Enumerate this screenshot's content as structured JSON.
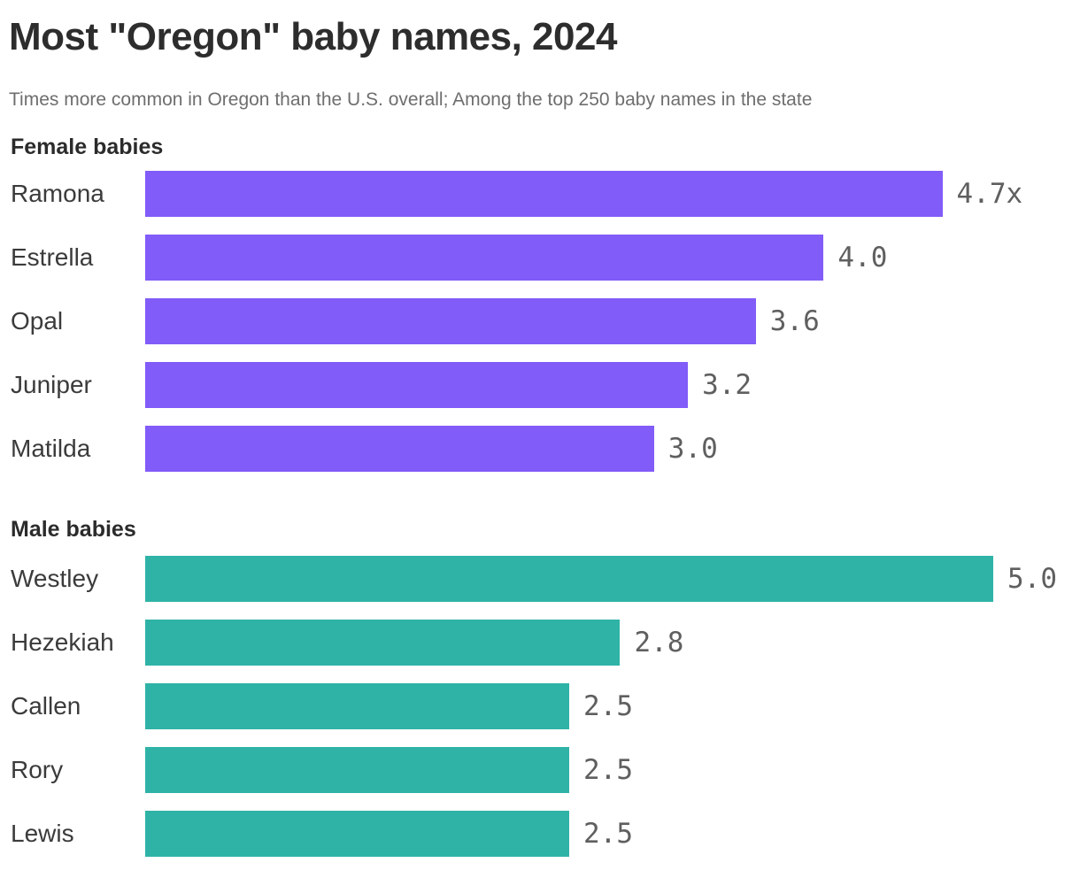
{
  "header": {
    "title": "Most \"Oregon\" baby names, 2024",
    "subtitle": "Times more common in Oregon than the U.S. overall; Among the top 250 baby names in the state"
  },
  "chart_data": {
    "type": "bar",
    "orientation": "horizontal",
    "xlim": [
      0,
      5.0
    ],
    "grid": false,
    "legend": false,
    "value_label_position": "end-of-bar",
    "sections": [
      {
        "label": "Female babies",
        "color": "#815CF8",
        "rows": [
          {
            "name": "Ramona",
            "value": 4.7,
            "value_label": "4.7x"
          },
          {
            "name": "Estrella",
            "value": 4.0,
            "value_label": "4.0"
          },
          {
            "name": "Opal",
            "value": 3.6,
            "value_label": "3.6"
          },
          {
            "name": "Juniper",
            "value": 3.2,
            "value_label": "3.2"
          },
          {
            "name": "Matilda",
            "value": 3.0,
            "value_label": "3.0"
          }
        ]
      },
      {
        "label": "Male babies",
        "color": "#2EB3A6",
        "rows": [
          {
            "name": "Westley",
            "value": 5.0,
            "value_label": "5.0"
          },
          {
            "name": "Hezekiah",
            "value": 2.8,
            "value_label": "2.8"
          },
          {
            "name": "Callen",
            "value": 2.5,
            "value_label": "2.5"
          },
          {
            "name": "Rory",
            "value": 2.5,
            "value_label": "2.5"
          },
          {
            "name": "Lewis",
            "value": 2.5,
            "value_label": "2.5"
          }
        ]
      }
    ],
    "colors": {
      "female_bar": "#815CF8",
      "male_bar": "#2EB3A6",
      "title_text": "#2d2d2d",
      "subtitle_text": "#6e6e6e",
      "value_text": "#5f5f5f"
    }
  }
}
